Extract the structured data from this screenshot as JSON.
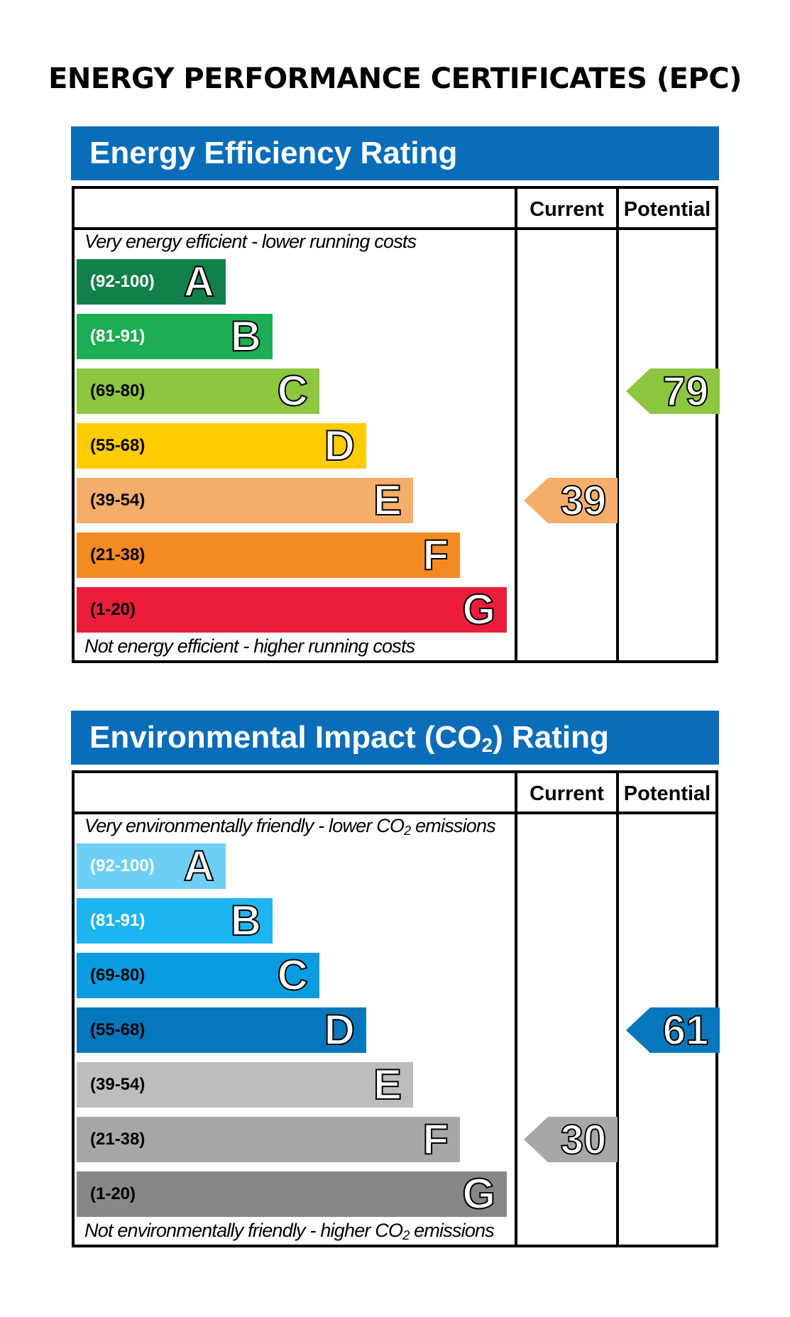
{
  "page_title": "ENERGY PERFORMANCE CERTIFICATES (EPC)",
  "charts": [
    {
      "title": "Energy Efficiency Rating",
      "title_sub": "",
      "title_suffix": "",
      "col_current": "Current",
      "col_potential": "Potential",
      "top_note": "Very energy efficient - lower running costs",
      "top_note_sub": "",
      "top_note_suffix": "",
      "bottom_note": "Not energy efficient - higher running costs",
      "bottom_note_sub": "",
      "bottom_note_suffix": "",
      "bands": [
        {
          "range": "(92-100)",
          "letter": "A",
          "color": "#12804a",
          "text_color": "#ffffff"
        },
        {
          "range": "(81-91)",
          "letter": "B",
          "color": "#1bae54",
          "text_color": "#ffffff"
        },
        {
          "range": "(69-80)",
          "letter": "C",
          "color": "#8dc63f",
          "text_color": "#000000"
        },
        {
          "range": "(55-68)",
          "letter": "D",
          "color": "#ffcc04",
          "text_color": "#000000"
        },
        {
          "range": "(39-54)",
          "letter": "E",
          "color": "#f5ae69",
          "text_color": "#000000"
        },
        {
          "range": "(21-38)",
          "letter": "F",
          "color": "#f48a22",
          "text_color": "#000000"
        },
        {
          "range": "(1-20)",
          "letter": "G",
          "color": "#eb1d3a",
          "text_color": "#000000"
        }
      ],
      "current": {
        "value": "39",
        "band": "E",
        "color": "#f5ae69"
      },
      "potential": {
        "value": "79",
        "band": "C",
        "color": "#8dc63f"
      }
    },
    {
      "title": "Environmental Impact (CO",
      "title_sub": "2",
      "title_suffix": ") Rating",
      "col_current": "Current",
      "col_potential": "Potential",
      "top_note": "Very environmentally friendly - lower CO",
      "top_note_sub": "2",
      "top_note_suffix": " emissions",
      "bottom_note": "Not environmentally friendly - higher CO",
      "bottom_note_sub": "2",
      "bottom_note_suffix": " emissions",
      "bands": [
        {
          "range": "(92-100)",
          "letter": "A",
          "color": "#6dcff6",
          "text_color": "#ffffff"
        },
        {
          "range": "(81-91)",
          "letter": "B",
          "color": "#1fb5f3",
          "text_color": "#ffffff"
        },
        {
          "range": "(69-80)",
          "letter": "C",
          "color": "#0b9be0",
          "text_color": "#000000"
        },
        {
          "range": "(55-68)",
          "letter": "D",
          "color": "#0777bd",
          "text_color": "#000000"
        },
        {
          "range": "(39-54)",
          "letter": "E",
          "color": "#bcbdbf",
          "text_color": "#000000"
        },
        {
          "range": "(21-38)",
          "letter": "F",
          "color": "#a6a7a9",
          "text_color": "#000000"
        },
        {
          "range": "(1-20)",
          "letter": "G",
          "color": "#868789",
          "text_color": "#000000"
        }
      ],
      "current": {
        "value": "30",
        "band": "F",
        "color": "#a6a7a9"
      },
      "potential": {
        "value": "61",
        "band": "D",
        "color": "#0777bd"
      }
    }
  ]
}
